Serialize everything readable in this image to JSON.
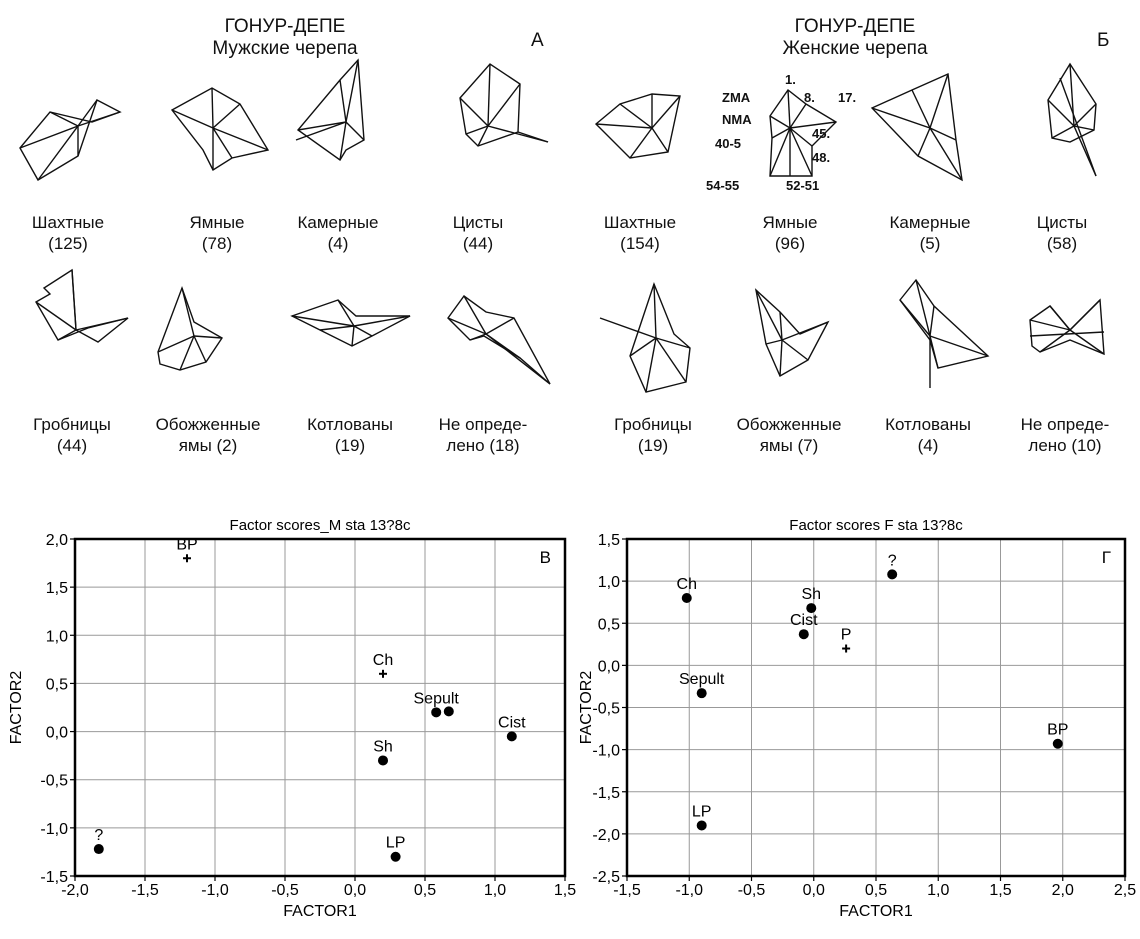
{
  "top": {
    "left": {
      "title_line1": "ГОНУР-ДЕПЕ",
      "title_line2": "Мужские черепа",
      "letter": "А",
      "items": [
        {
          "name": "Шахтные",
          "count": "(125)"
        },
        {
          "name": "Ямные",
          "count": "(78)"
        },
        {
          "name": "Камерные",
          "count": "(4)"
        },
        {
          "name": "Цисты",
          "count": "(44)"
        },
        {
          "name": "Гробницы",
          "count": "(44)"
        },
        {
          "name": "Обожженные",
          "count": "ямы (2)"
        },
        {
          "name": "Котлованы",
          "count": "(19)"
        },
        {
          "name": "Не опреде-",
          "count": "лено (18)"
        }
      ]
    },
    "right": {
      "title_line1": "ГОНУР-ДЕПЕ",
      "title_line2": "Женские черепа",
      "letter": "Б",
      "items": [
        {
          "name": "Шахтные",
          "count": "(154)"
        },
        {
          "name": "Ямные",
          "count": "(96)"
        },
        {
          "name": "Камерные",
          "count": "(5)"
        },
        {
          "name": "Цисты",
          "count": "(58)"
        },
        {
          "name": "Гробницы",
          "count": "(19)"
        },
        {
          "name": "Обожженные",
          "count": "ямы (7)"
        },
        {
          "name": "Котлованы",
          "count": "(4)"
        },
        {
          "name": "Не опреде-",
          "count": "лено (10)"
        }
      ],
      "variable_labels": [
        "ZMA",
        "NMA",
        "40-5",
        "54-55",
        "1.",
        "8.",
        "17.",
        "45.",
        "48.",
        "52-51"
      ]
    }
  },
  "chart_data": [
    {
      "type": "scatter",
      "title": "Factor scores_M sta 13?8c",
      "panel_letter": "В",
      "xlabel": "FACTOR1",
      "ylabel": "FACTOR2",
      "xlim": [
        -2.0,
        1.5
      ],
      "ylim": [
        -1.5,
        2.0
      ],
      "xticks": [
        "-2,0",
        "-1,5",
        "-1,0",
        "-0,5",
        "0,0",
        "0,5",
        "1,0",
        "1,5"
      ],
      "yticks": [
        "-1,5",
        "-1,0",
        "-0,5",
        "0,0",
        "0,5",
        "1,0",
        "1,5",
        "2,0"
      ],
      "grid": true,
      "points": [
        {
          "label": "BP",
          "x": -1.2,
          "y": 1.8,
          "marker": "plus"
        },
        {
          "label": "?",
          "x": -1.83,
          "y": -1.22,
          "marker": "dot"
        },
        {
          "label": "Ch",
          "x": 0.2,
          "y": 0.6,
          "marker": "plus"
        },
        {
          "label": "Sepult",
          "x": 0.58,
          "y": 0.2,
          "marker": "dot"
        },
        {
          "label": "",
          "x": 0.67,
          "y": 0.21,
          "marker": "dot"
        },
        {
          "label": "Cist",
          "x": 1.12,
          "y": -0.05,
          "marker": "dot"
        },
        {
          "label": "Sh",
          "x": 0.2,
          "y": -0.3,
          "marker": "dot"
        },
        {
          "label": "LP",
          "x": 0.29,
          "y": -1.3,
          "marker": "dot"
        }
      ]
    },
    {
      "type": "scatter",
      "title": "Factor scores F sta 13?8c",
      "panel_letter": "Г",
      "xlabel": "FACTOR1",
      "ylabel": "FACTOR2",
      "xlim": [
        -1.5,
        2.5
      ],
      "ylim": [
        -2.5,
        1.5
      ],
      "xticks": [
        "-1,5",
        "-1,0",
        "-0,5",
        "0,0",
        "0,5",
        "1,0",
        "1,5",
        "2,0",
        "2,5"
      ],
      "yticks": [
        "-2,5",
        "-2,0",
        "-1,5",
        "-1,0",
        "-0,5",
        "0,0",
        "0,5",
        "1,0",
        "1,5"
      ],
      "grid": true,
      "points": [
        {
          "label": "Ch",
          "x": -1.02,
          "y": 0.8,
          "marker": "dot"
        },
        {
          "label": "?",
          "x": 0.63,
          "y": 1.08,
          "marker": "dot"
        },
        {
          "label": "Sh",
          "x": -0.02,
          "y": 0.68,
          "marker": "dot"
        },
        {
          "label": "Cist",
          "x": -0.08,
          "y": 0.37,
          "marker": "dot"
        },
        {
          "label": "P",
          "x": 0.26,
          "y": 0.2,
          "marker": "plus"
        },
        {
          "label": "Sepult",
          "x": -0.9,
          "y": -0.33,
          "marker": "dot"
        },
        {
          "label": "BP",
          "x": 1.96,
          "y": -0.93,
          "marker": "dot"
        },
        {
          "label": "LP",
          "x": -0.9,
          "y": -1.9,
          "marker": "dot"
        }
      ]
    }
  ]
}
